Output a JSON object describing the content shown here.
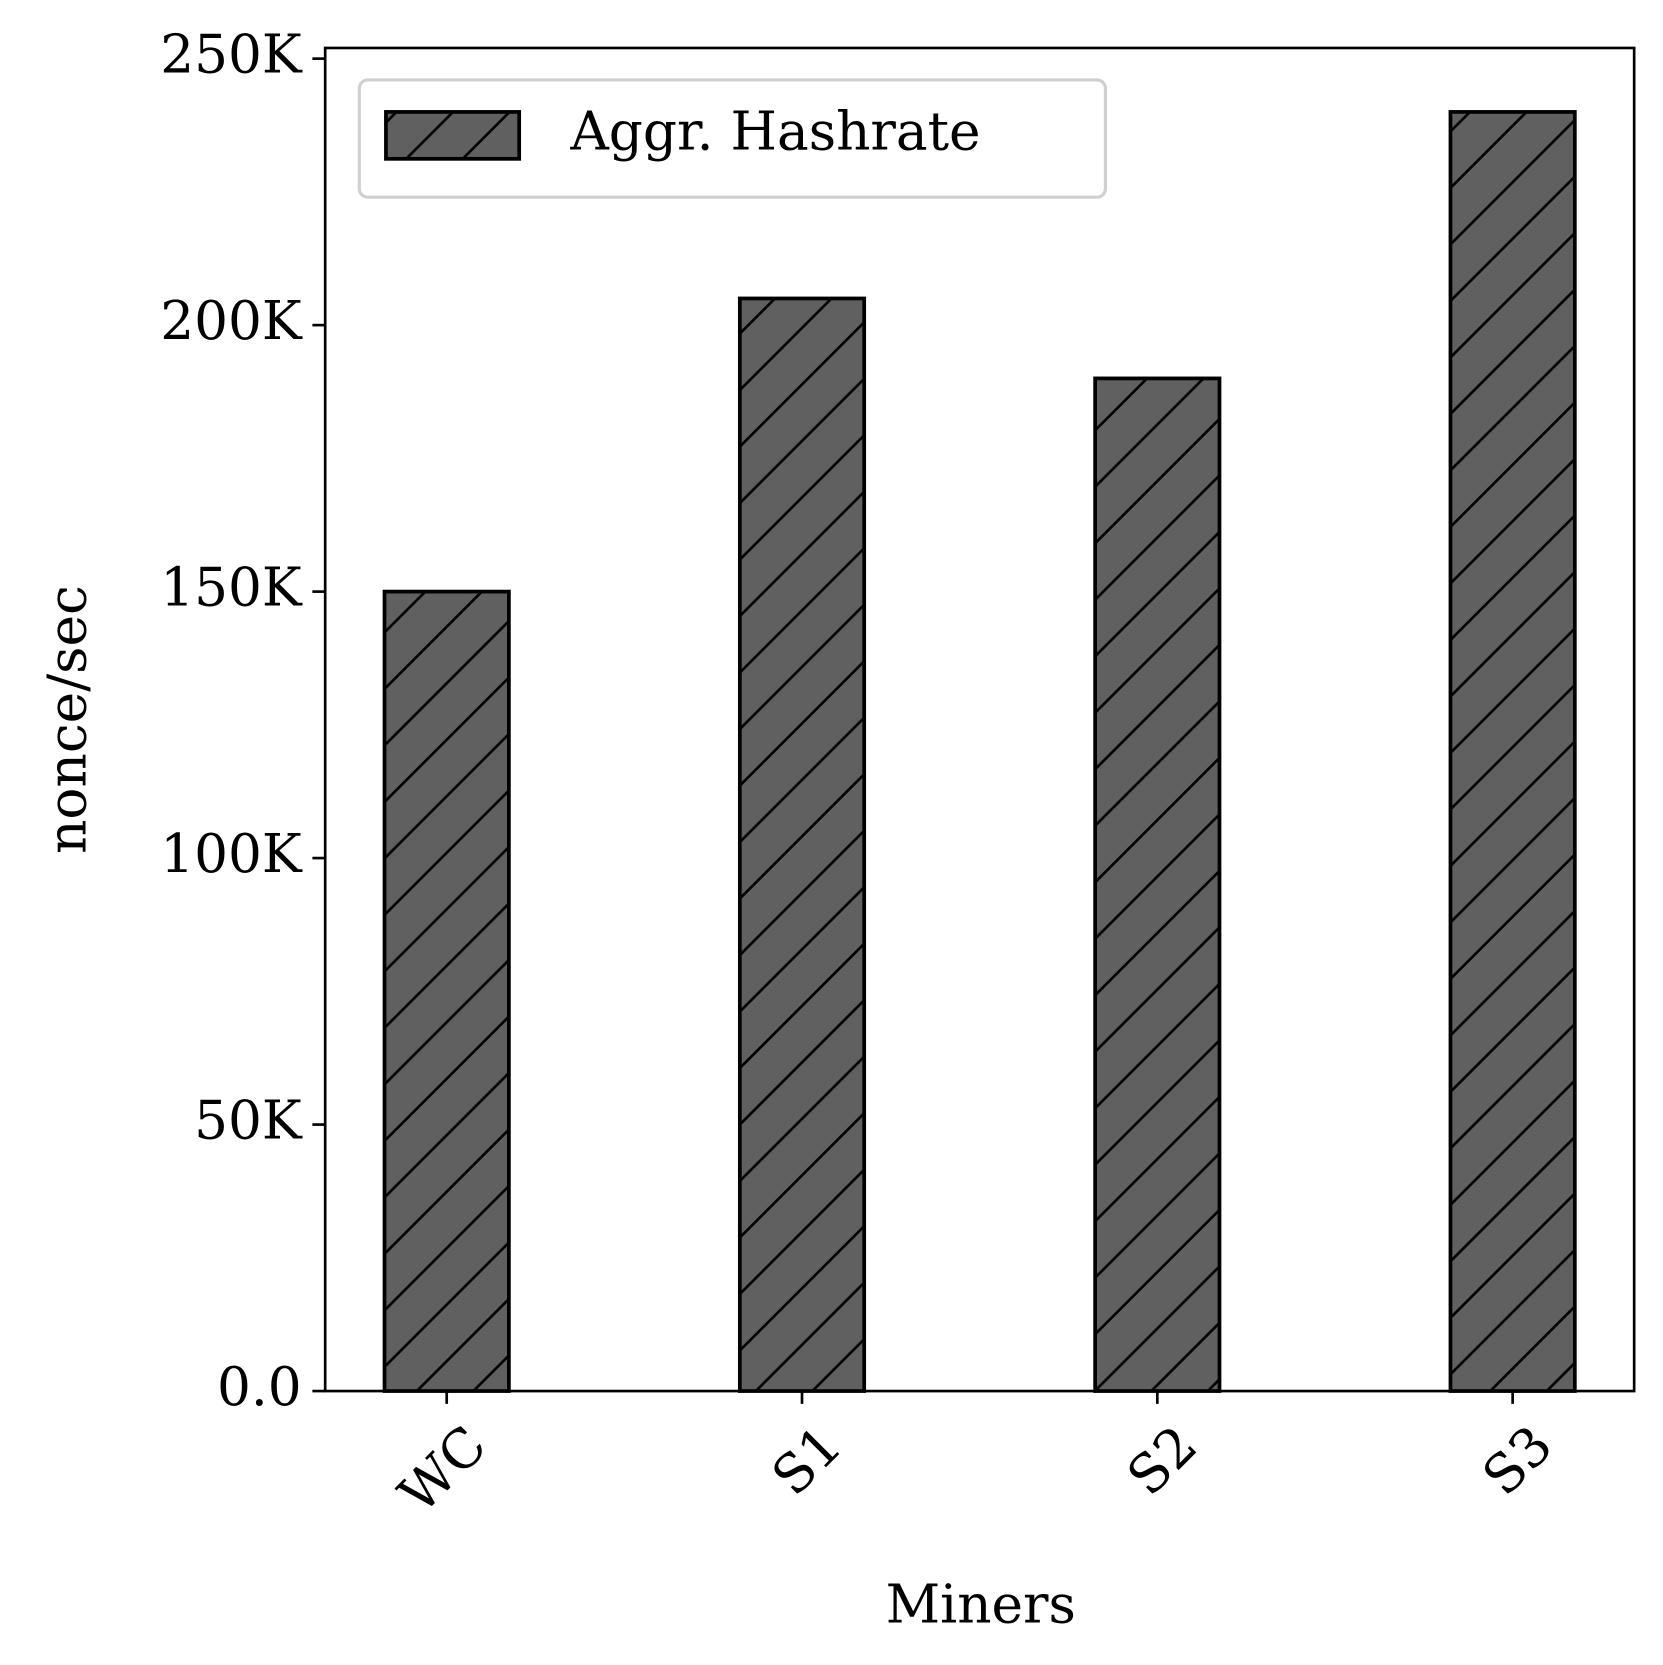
{
  "chart_data": {
    "type": "bar",
    "x_label": "Miners",
    "y_label": "nonce/sec",
    "categories": [
      "WC",
      "S1",
      "S2",
      "S3"
    ],
    "series": [
      {
        "name": "Aggr. Hashrate",
        "color": "#606060",
        "values": [
          150000,
          205000,
          190000,
          240000
        ]
      }
    ],
    "ylim": [
      0,
      252000
    ],
    "yticks": [
      {
        "value": 0,
        "label": "0.0"
      },
      {
        "value": 50000,
        "label": "50K"
      },
      {
        "value": 100000,
        "label": "100K"
      },
      {
        "value": 150000,
        "label": "150K"
      },
      {
        "value": 200000,
        "label": "200K"
      },
      {
        "value": 250000,
        "label": "250K"
      }
    ],
    "legend": "upper left",
    "hatch": "/"
  }
}
